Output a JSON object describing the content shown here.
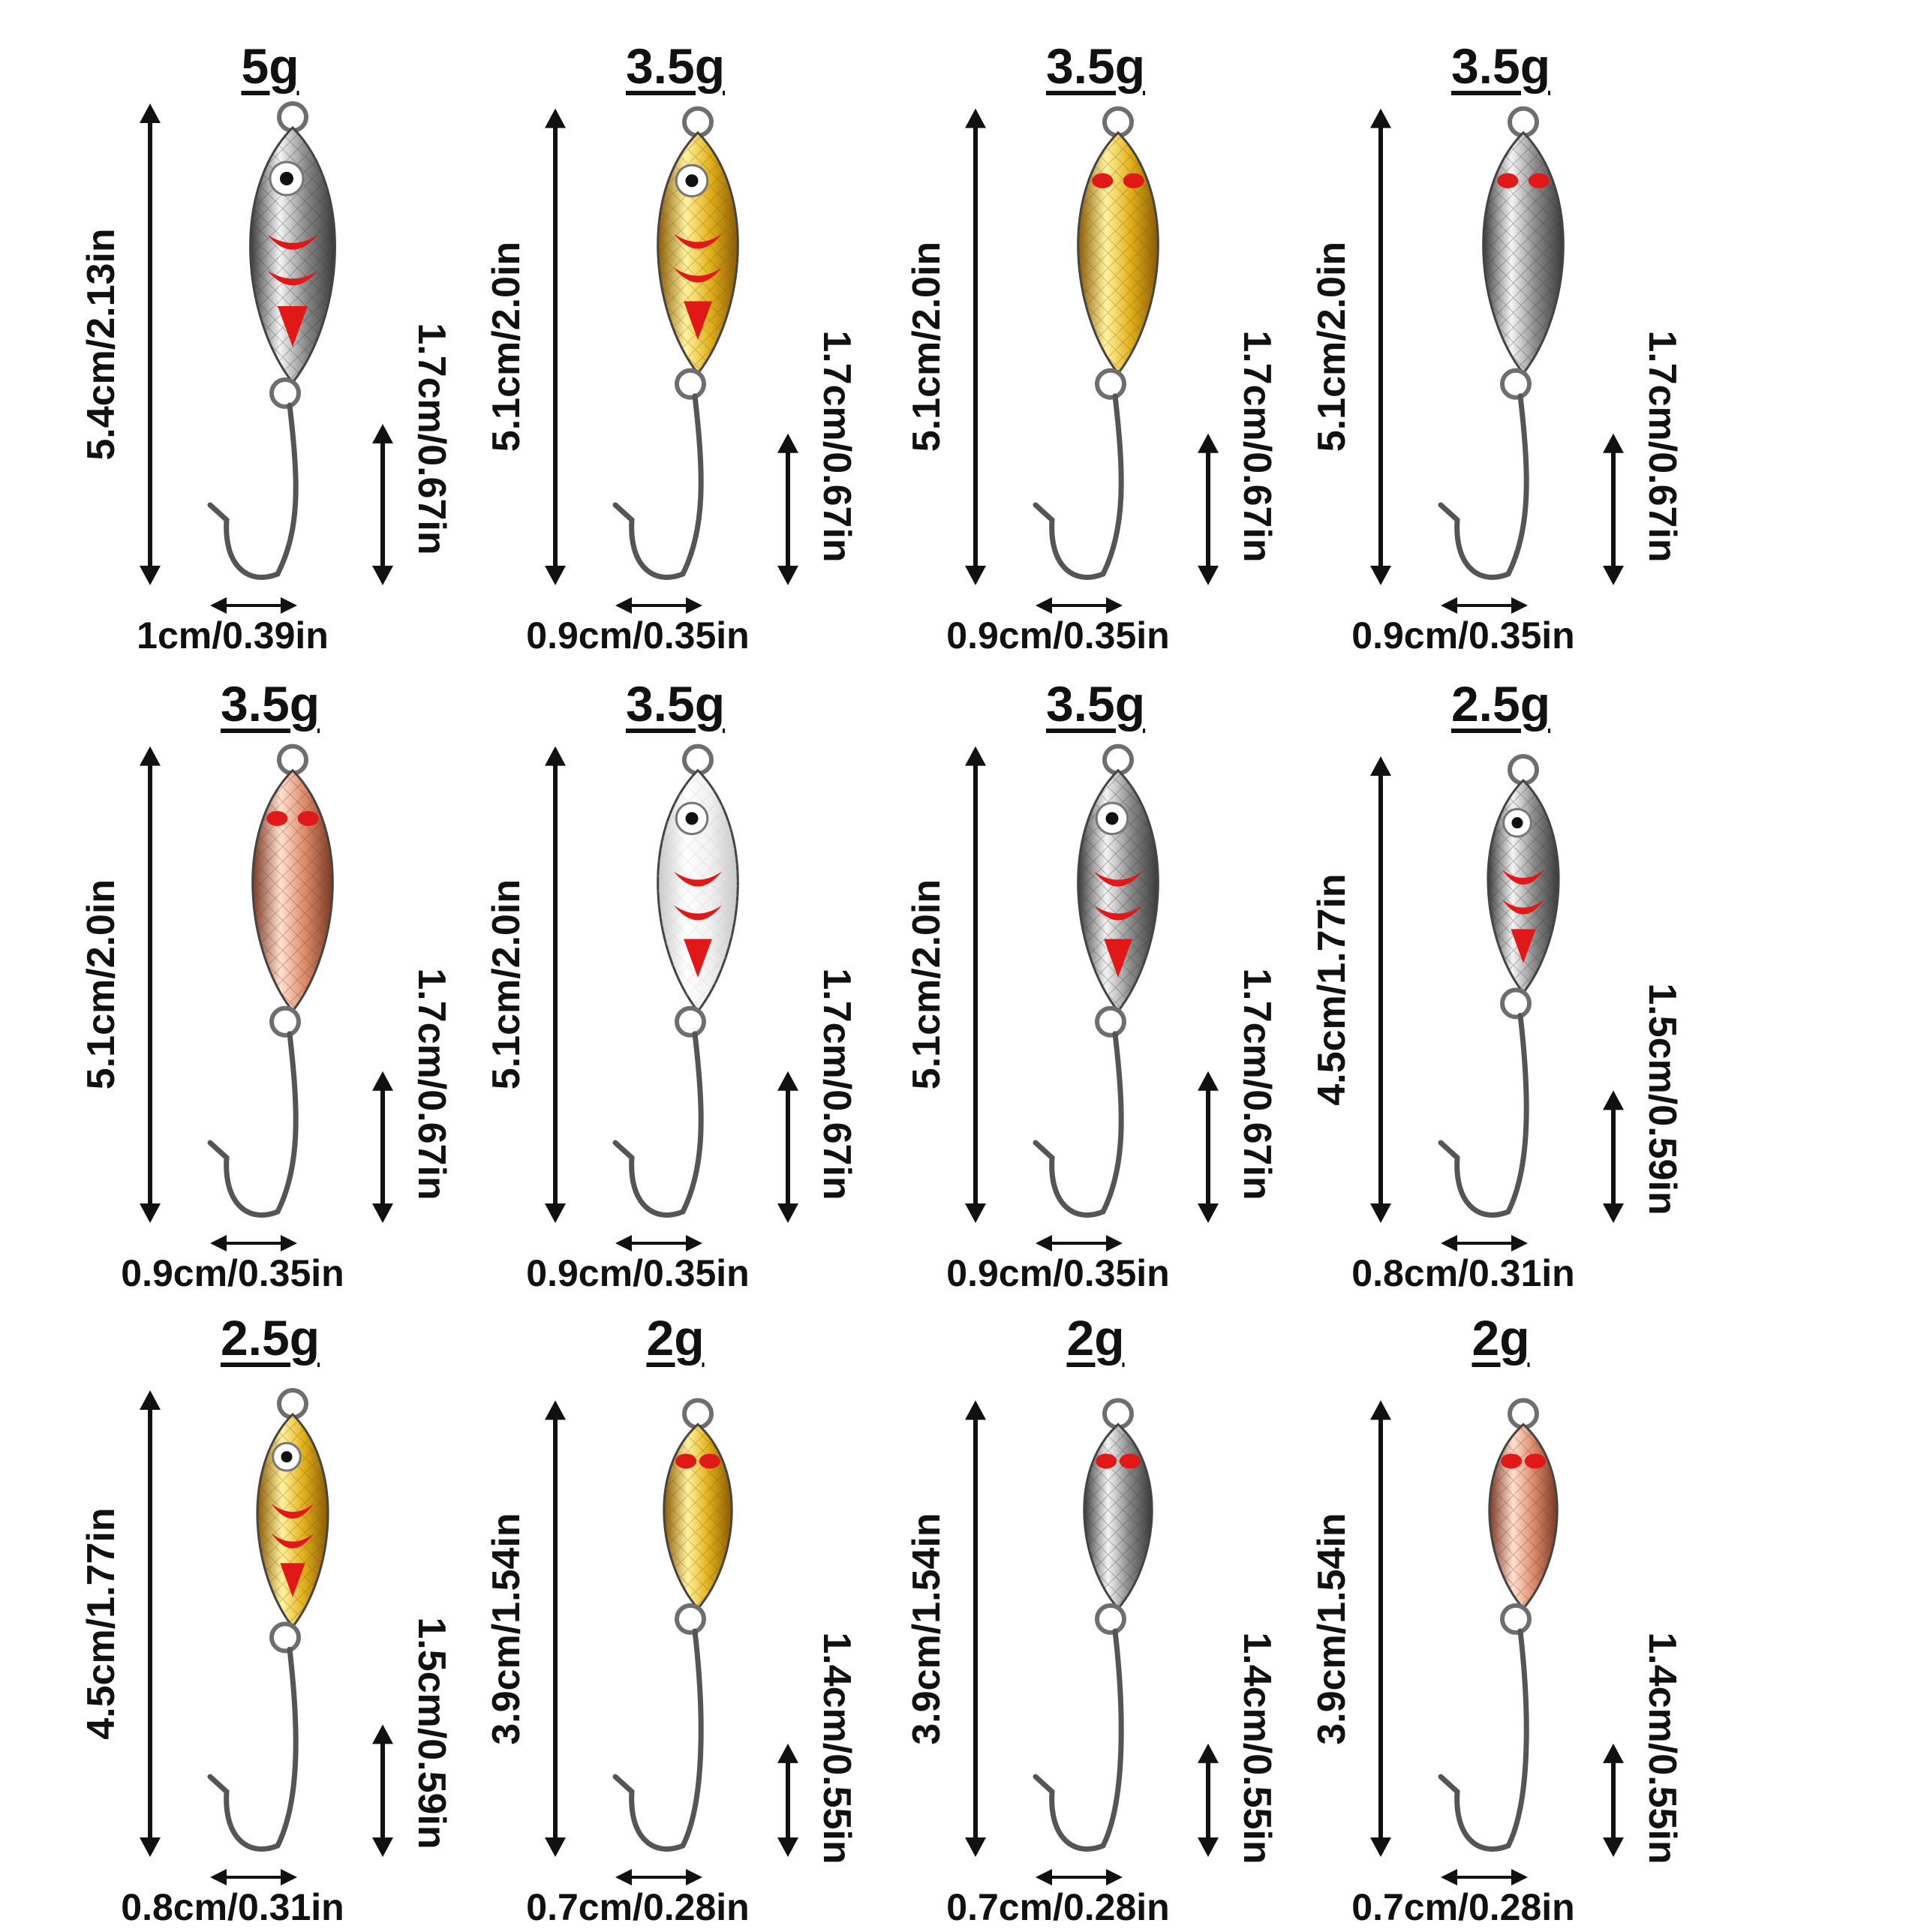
{
  "colors": {
    "silver": [
      "#f4f4f4",
      "#8c8c8c",
      "#3a3a3a"
    ],
    "gold": [
      "#fff3a0",
      "#e2b21c",
      "#8a5a05"
    ],
    "copper": [
      "#ffe0d0",
      "#dc8c6a",
      "#7a3a24"
    ],
    "white": [
      "#ffffff",
      "#f1f1f1",
      "#c8c8c8"
    ],
    "accent_red": "#e01818",
    "hook": "#555555",
    "arrow": "#111111"
  },
  "lures": [
    {
      "weight": "5g",
      "length": "5.4cm/2.13in",
      "hook": "1.7cm/0.67in",
      "width": "1cm/0.39in",
      "finish": "silver",
      "pattern": "eye-stripes"
    },
    {
      "weight": "3.5g",
      "length": "5.1cm/2.0in",
      "hook": "1.7cm/0.67in",
      "width": "0.9cm/0.35in",
      "finish": "gold",
      "pattern": "eye-stripes"
    },
    {
      "weight": "3.5g",
      "length": "5.1cm/2.0in",
      "hook": "1.7cm/0.67in",
      "width": "0.9cm/0.35in",
      "finish": "gold",
      "pattern": "gill-dots"
    },
    {
      "weight": "3.5g",
      "length": "5.1cm/2.0in",
      "hook": "1.7cm/0.67in",
      "width": "0.9cm/0.35in",
      "finish": "silver",
      "pattern": "gill-dots"
    },
    {
      "weight": "3.5g",
      "length": "5.1cm/2.0in",
      "hook": "1.7cm/0.67in",
      "width": "0.9cm/0.35in",
      "finish": "copper",
      "pattern": "gill-dots"
    },
    {
      "weight": "3.5g",
      "length": "5.1cm/2.0in",
      "hook": "1.7cm/0.67in",
      "width": "0.9cm/0.35in",
      "finish": "white",
      "pattern": "eye-stripes"
    },
    {
      "weight": "3.5g",
      "length": "5.1cm/2.0in",
      "hook": "1.7cm/0.67in",
      "width": "0.9cm/0.35in",
      "finish": "silver",
      "pattern": "eye-stripes"
    },
    {
      "weight": "2.5g",
      "length": "4.5cm/1.77in",
      "hook": "1.5cm/0.59in",
      "width": "0.8cm/0.31in",
      "finish": "silver",
      "pattern": "eye-stripes"
    },
    {
      "weight": "2.5g",
      "length": "4.5cm/1.77in",
      "hook": "1.5cm/0.59in",
      "width": "0.8cm/0.31in",
      "finish": "gold",
      "pattern": "eye-stripes"
    },
    {
      "weight": "2g",
      "length": "3.9cm/1.54in",
      "hook": "1.4cm/0.55in",
      "width": "0.7cm/0.28in",
      "finish": "gold",
      "pattern": "gill-dots"
    },
    {
      "weight": "2g",
      "length": "3.9cm/1.54in",
      "hook": "1.4cm/0.55in",
      "width": "0.7cm/0.28in",
      "finish": "silver",
      "pattern": "gill-dots"
    },
    {
      "weight": "2g",
      "length": "3.9cm/1.54in",
      "hook": "1.4cm/0.55in",
      "width": "0.7cm/0.28in",
      "finish": "copper",
      "pattern": "gill-dots"
    }
  ]
}
